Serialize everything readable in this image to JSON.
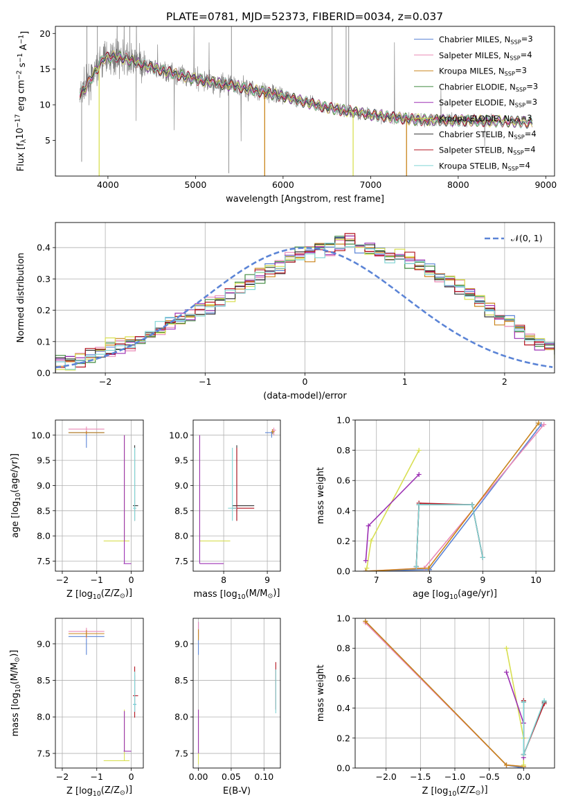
{
  "figure_title": "PLATE=0781, MJD=52373, FIBERID=0034, z=0.037",
  "colors": {
    "Chabrier MILES": "#5b84d6",
    "Salpeter MILES": "#e989b6",
    "Kroupa MILES": "#c9841a",
    "Chabrier ELODIE": "#3f8a3f",
    "Salpeter ELODIE": "#9b2fb3",
    "Kroupa ELODIE": "#d8df52",
    "Chabrier STELIB": "#333333",
    "Salpeter STELIB": "#b3121e",
    "Kroupa STELIB": "#7fd4d4",
    "data": "#777777",
    "normal": "#5b84d6"
  },
  "chart_data": [
    {
      "type": "line",
      "id": "spectrum",
      "title": "PLATE=0781, MJD=52373, FIBERID=0034, z=0.037",
      "xlabel": "wavelength [Angstrom, rest frame]",
      "ylabel_parts": [
        "Flux [f",
        "λ",
        "10",
        "−17",
        " erg cm",
        "−2",
        " s",
        "−1",
        " A",
        "−1",
        "]"
      ],
      "xlim": [
        3400,
        9100
      ],
      "ylim": [
        0,
        21
      ],
      "xticks": [
        4000,
        5000,
        6000,
        7000,
        8000,
        9000
      ],
      "yticks": [
        5,
        10,
        15,
        20
      ],
      "legend_position": "upper-right",
      "legend": [
        {
          "name": "Chabrier MILES",
          "pre": "Chabrier MILES, N",
          "sub": "SSP",
          "post": "=3"
        },
        {
          "name": "Salpeter MILES",
          "pre": "Salpeter MILES, N",
          "sub": "SSP",
          "post": "=4"
        },
        {
          "name": "Kroupa MILES",
          "pre": "Kroupa MILES, N",
          "sub": "SSP",
          "post": "=3"
        },
        {
          "name": "Chabrier ELODIE",
          "pre": "Chabrier ELODIE, N",
          "sub": "SSP",
          "post": "=3"
        },
        {
          "name": "Salpeter ELODIE",
          "pre": "Salpeter ELODIE, N",
          "sub": "SSP",
          "post": "=3"
        },
        {
          "name": "Kroupa ELODIE",
          "pre": "Kroupa ELODIE, N",
          "sub": "SSP",
          "post": "=3"
        },
        {
          "name": "Chabrier STELIB",
          "pre": "Chabrier STELIB, N",
          "sub": "SSP",
          "post": "=4"
        },
        {
          "name": "Salpeter STELIB",
          "pre": "Salpeter STELIB, N",
          "sub": "SSP",
          "post": "=4"
        },
        {
          "name": "Kroupa STELIB",
          "pre": "Kroupa STELIB, N",
          "sub": "SSP",
          "post": "=4"
        }
      ],
      "data_range": [
        3680,
        8850
      ],
      "continuum": [
        [
          3680,
          11.5
        ],
        [
          3750,
          12.5
        ],
        [
          3850,
          14.5
        ],
        [
          3950,
          16.5
        ],
        [
          4100,
          16.8
        ],
        [
          4300,
          16.0
        ],
        [
          4500,
          15.2
        ],
        [
          5000,
          13.6
        ],
        [
          5500,
          12.5
        ],
        [
          6000,
          11.2
        ],
        [
          6500,
          9.6
        ],
        [
          7000,
          8.6
        ],
        [
          7500,
          7.9
        ],
        [
          8000,
          7.8
        ],
        [
          8500,
          7.7
        ],
        [
          8850,
          7.5
        ]
      ],
      "drops": [
        {
          "series": "Kroupa MILES",
          "x": 5790,
          "to": 0
        },
        {
          "series": "Kroupa MILES",
          "x": 7410,
          "to": 0
        },
        {
          "series": "Kroupa ELODIE",
          "x": 3900,
          "to": 0
        },
        {
          "series": "Kroupa ELODIE",
          "x": 6800,
          "to": 0
        }
      ]
    },
    {
      "type": "step",
      "id": "residuals",
      "xlabel": "(data-model)/error",
      "ylabel": "Normed distribution",
      "xlim": [
        -2.5,
        2.5
      ],
      "ylim": [
        0,
        0.48
      ],
      "xticks": [
        -2,
        -1,
        0,
        1,
        2
      ],
      "yticks": [
        0.0,
        0.1,
        0.2,
        0.3,
        0.4
      ],
      "legend_position": "upper-right",
      "reference": {
        "name": "𝒩(0, 1)",
        "mean": 0,
        "sigma": 1
      },
      "bins": {
        "start": -2.5,
        "width": 0.1
      },
      "envelope": [
        0.035,
        0.04,
        0.045,
        0.06,
        0.07,
        0.075,
        0.085,
        0.095,
        0.105,
        0.12,
        0.135,
        0.155,
        0.17,
        0.185,
        0.2,
        0.215,
        0.235,
        0.25,
        0.27,
        0.29,
        0.31,
        0.325,
        0.345,
        0.36,
        0.375,
        0.39,
        0.395,
        0.41,
        0.415,
        0.42,
        0.405,
        0.395,
        0.385,
        0.375,
        0.37,
        0.36,
        0.345,
        0.33,
        0.315,
        0.295,
        0.275,
        0.25,
        0.23,
        0.205,
        0.185,
        0.16,
        0.14,
        0.12,
        0.1,
        0.085,
        0.07,
        0.055,
        0.045,
        0.04,
        0.035
      ]
    },
    {
      "type": "errorbar",
      "id": "age-vs-Z",
      "xlabel_parts": [
        "Z [log",
        "10",
        "(Z/Z",
        "⊙",
        ")]"
      ],
      "ylabel_parts": [
        "age  [log",
        "10",
        "(age/yr)]"
      ],
      "xlim": [
        -2.2,
        0.35
      ],
      "ylim": [
        7.3,
        10.3
      ],
      "xticks": [
        -2,
        -1,
        0
      ],
      "yticks": [
        7.5,
        8.0,
        8.5,
        9.0,
        9.5,
        10.0
      ],
      "points": [
        {
          "series": "Chabrier MILES",
          "x": -1.3,
          "y": 10.05,
          "xerr": [
            0.52,
            0.52
          ],
          "yerr": [
            0.3,
            0.03
          ]
        },
        {
          "series": "Salpeter MILES",
          "x": -1.3,
          "y": 10.12,
          "xerr": [
            0.52,
            0.52
          ],
          "yerr": [
            0.1,
            0.05
          ]
        },
        {
          "series": "Kroupa MILES",
          "x": -1.3,
          "y": 10.05,
          "xerr": [
            0.52,
            0.52
          ],
          "yerr": [
            0.03,
            0.03
          ]
        },
        {
          "series": "Kroupa ELODIE",
          "x": -0.2,
          "y": 7.9,
          "xerr": [
            0.6,
            0.15
          ],
          "yerr": [
            0.0,
            2.1
          ]
        },
        {
          "series": "Salpeter ELODIE",
          "x": -0.2,
          "y": 7.45,
          "xerr": [
            0.02,
            0.2
          ],
          "yerr": [
            0.0,
            2.55
          ]
        },
        {
          "series": "Chabrier STELIB",
          "x": 0.1,
          "y": 8.6,
          "xerr": [
            0.05,
            0.1
          ],
          "yerr": [
            0.3,
            1.2
          ]
        },
        {
          "series": "Kroupa STELIB",
          "x": 0.1,
          "y": 8.55,
          "xerr": [
            0.05,
            0.05
          ],
          "yerr": [
            0.25,
            1.2
          ]
        }
      ]
    },
    {
      "type": "errorbar",
      "id": "age-vs-mass",
      "xlabel_parts": [
        "mass [log",
        "10",
        "(M/M",
        "⊙",
        ")]"
      ],
      "ylabel": "",
      "xlim": [
        7.3,
        9.3
      ],
      "ylim": [
        7.3,
        10.3
      ],
      "xticks": [
        8,
        9
      ],
      "yticks": [
        7.5,
        8.0,
        8.5,
        9.0,
        9.5,
        10.0
      ],
      "points": [
        {
          "series": "Chabrier MILES",
          "x": 9.1,
          "y": 10.05,
          "xerr": [
            0.15,
            0.05
          ],
          "yerr": [
            0.1,
            0.03
          ]
        },
        {
          "series": "Salpeter MILES",
          "x": 9.15,
          "y": 10.1,
          "xerr": [
            0.05,
            0.05
          ],
          "yerr": [
            0.1,
            0.05
          ]
        },
        {
          "series": "Kroupa MILES",
          "x": 9.12,
          "y": 10.07,
          "xerr": [
            0.03,
            0.05
          ],
          "yerr": [
            0.05,
            0.05
          ]
        },
        {
          "series": "Kroupa ELODIE",
          "x": 7.45,
          "y": 7.9,
          "xerr": [
            0.0,
            0.7
          ],
          "yerr": [
            0.0,
            2.1
          ]
        },
        {
          "series": "Salpeter ELODIE",
          "x": 7.45,
          "y": 7.45,
          "xerr": [
            0.0,
            0.55
          ],
          "yerr": [
            0.0,
            2.55
          ]
        },
        {
          "series": "Chabrier STELIB",
          "x": 8.3,
          "y": 8.6,
          "xerr": [
            0.1,
            0.4
          ],
          "yerr": [
            0.3,
            1.2
          ]
        },
        {
          "series": "Salpeter STELIB",
          "x": 8.3,
          "y": 8.55,
          "xerr": [
            0.1,
            0.4
          ],
          "yerr": [
            0.25,
            1.2
          ]
        },
        {
          "series": "Kroupa STELIB",
          "x": 8.2,
          "y": 8.55,
          "xerr": [
            0.1,
            0.1
          ],
          "yerr": [
            0.25,
            1.2
          ]
        }
      ]
    },
    {
      "type": "line",
      "id": "weight-vs-age",
      "xlabel_parts": [
        "age  [log",
        "10",
        "(age/yr)]"
      ],
      "ylabel": "mass weight",
      "xlim": [
        6.6,
        10.35
      ],
      "ylim": [
        0,
        1.0
      ],
      "xticks": [
        7,
        8,
        9,
        10
      ],
      "yticks": [
        0.0,
        0.2,
        0.4,
        0.6,
        0.8,
        1.0
      ],
      "series": [
        {
          "name": "Chabrier MILES",
          "x": [
            6.8,
            8.0,
            10.1
          ],
          "y": [
            0.0,
            0.01,
            0.97
          ]
        },
        {
          "name": "Salpeter MILES",
          "x": [
            6.8,
            7.9,
            10.15
          ],
          "y": [
            0.0,
            0.02,
            0.97
          ]
        },
        {
          "name": "Kroupa MILES",
          "x": [
            6.8,
            7.98,
            10.05
          ],
          "y": [
            0.0,
            0.02,
            0.98
          ]
        },
        {
          "name": "Kroupa ELODIE",
          "x": [
            6.82,
            6.9,
            7.8
          ],
          "y": [
            0.02,
            0.2,
            0.8
          ]
        },
        {
          "name": "Salpeter ELODIE",
          "x": [
            6.8,
            6.85,
            7.8
          ],
          "y": [
            0.07,
            0.3,
            0.64
          ]
        },
        {
          "name": "Chabrier STELIB",
          "x": [
            7.75,
            7.8,
            8.8,
            9.0
          ],
          "y": [
            0.03,
            0.44,
            0.44,
            0.09
          ]
        },
        {
          "name": "Salpeter STELIB",
          "x": [
            7.75,
            7.8,
            8.8,
            9.0
          ],
          "y": [
            0.03,
            0.45,
            0.44,
            0.09
          ]
        },
        {
          "name": "Kroupa STELIB",
          "x": [
            7.75,
            7.8,
            8.8,
            9.0
          ],
          "y": [
            0.03,
            0.44,
            0.44,
            0.09
          ]
        }
      ]
    },
    {
      "type": "errorbar",
      "id": "mass-vs-Z",
      "xlabel_parts": [
        "Z [log",
        "10",
        "(Z/Z",
        "⊙",
        ")]"
      ],
      "ylabel_parts": [
        "mass [log",
        "10",
        "(M/M",
        "⊙",
        ")]"
      ],
      "xlim": [
        -2.2,
        0.35
      ],
      "ylim": [
        7.3,
        9.35
      ],
      "xticks": [
        -2,
        -1,
        0
      ],
      "yticks": [
        7.5,
        8.0,
        8.5,
        9.0
      ],
      "points": [
        {
          "series": "Chabrier MILES",
          "x": -1.3,
          "y": 9.1,
          "xerr": [
            0.52,
            0.52
          ],
          "yerr": [
            0.25,
            0.05
          ]
        },
        {
          "series": "Salpeter MILES",
          "x": -1.3,
          "y": 9.17,
          "xerr": [
            0.52,
            0.52
          ],
          "yerr": [
            0.1,
            0.05
          ]
        },
        {
          "series": "Kroupa MILES",
          "x": -1.3,
          "y": 9.14,
          "xerr": [
            0.52,
            0.52
          ],
          "yerr": [
            0.05,
            0.05
          ]
        },
        {
          "series": "Kroupa ELODIE",
          "x": -0.2,
          "y": 7.4,
          "xerr": [
            0.6,
            0.15
          ],
          "yerr": [
            0.0,
            0.7
          ]
        },
        {
          "series": "Salpeter ELODIE",
          "x": -0.2,
          "y": 7.53,
          "xerr": [
            0.02,
            0.2
          ],
          "yerr": [
            0.0,
            0.55
          ]
        },
        {
          "series": "Salpeter STELIB",
          "x": 0.1,
          "y": 8.29,
          "xerr": [
            0.05,
            0.1
          ],
          "yerr": [
            0.3,
            0.4
          ]
        },
        {
          "series": "Chabrier MILES",
          "x": 0.1,
          "y": 8.17,
          "xerr": [
            0.05,
            0.05
          ],
          "yerr": [
            0.1,
            0.4
          ]
        },
        {
          "series": "Kroupa STELIB",
          "x": 0.1,
          "y": 8.17,
          "xerr": [
            0.05,
            0.05
          ],
          "yerr": [
            0.1,
            0.45
          ]
        }
      ]
    },
    {
      "type": "errorbar",
      "id": "mass-vs-ebv",
      "xlabel": "E(B-V)",
      "ylabel": "",
      "xlim": [
        -0.008,
        0.125
      ],
      "ylim": [
        7.3,
        9.35
      ],
      "xticks": [
        0.0,
        0.05,
        0.1
      ],
      "yticks": [
        7.5,
        8.0,
        8.5,
        9.0
      ],
      "points": [
        {
          "series": "Chabrier MILES",
          "x": 0.0,
          "y": 9.0,
          "xerr": [
            0,
            0
          ],
          "yerr": [
            0.15,
            0.3
          ]
        },
        {
          "series": "Salpeter MILES",
          "x": 0.0,
          "y": 9.2,
          "xerr": [
            0,
            0
          ],
          "yerr": [
            0.1,
            0.1
          ]
        },
        {
          "series": "Kroupa MILES",
          "x": 0.0,
          "y": 9.1,
          "xerr": [
            0,
            0
          ],
          "yerr": [
            0.05,
            0.1
          ]
        },
        {
          "series": "Kroupa ELODIE",
          "x": 0.0,
          "y": 7.8,
          "xerr": [
            0,
            0
          ],
          "yerr": [
            0.45,
            0.3
          ]
        },
        {
          "series": "Salpeter ELODIE",
          "x": 0.0,
          "y": 7.8,
          "xerr": [
            0,
            0
          ],
          "yerr": [
            0.3,
            0.3
          ]
        },
        {
          "series": "Salpeter STELIB",
          "x": 0.118,
          "y": 8.4,
          "xerr": [
            0,
            0
          ],
          "yerr": [
            0.3,
            0.35
          ]
        },
        {
          "series": "Kroupa STELIB",
          "x": 0.118,
          "y": 8.35,
          "xerr": [
            0,
            0
          ],
          "yerr": [
            0.3,
            0.3
          ]
        }
      ]
    },
    {
      "type": "line",
      "id": "weight-vs-Z",
      "xlabel_parts": [
        "Z [log",
        "10",
        "(Z/Z",
        "⊙",
        ")]"
      ],
      "ylabel": "mass weight",
      "xlim": [
        -2.45,
        0.45
      ],
      "ylim": [
        0,
        1.0
      ],
      "xticks": [
        -2.0,
        -1.5,
        -1.0,
        -0.5,
        0.0
      ],
      "yticks": [
        0.0,
        0.2,
        0.4,
        0.6,
        0.8,
        1.0
      ],
      "series": [
        {
          "name": "Chabrier MILES",
          "x": [
            -2.3,
            -0.25,
            0.0
          ],
          "y": [
            0.98,
            0.02,
            0.0
          ]
        },
        {
          "name": "Salpeter MILES",
          "x": [
            -2.3,
            -0.25,
            0.0
          ],
          "y": [
            0.97,
            0.02,
            0.01
          ]
        },
        {
          "name": "Kroupa MILES",
          "x": [
            -2.3,
            -0.25,
            0.0
          ],
          "y": [
            0.98,
            0.02,
            0.01
          ]
        },
        {
          "name": "Kroupa ELODIE",
          "x": [
            -0.25,
            0.0,
            0.0
          ],
          "y": [
            0.8,
            0.2,
            0.02
          ]
        },
        {
          "name": "Salpeter ELODIE",
          "x": [
            -0.25,
            0.0,
            0.0
          ],
          "y": [
            0.64,
            0.3,
            0.07
          ]
        },
        {
          "name": "Chabrier STELIB",
          "x": [
            0.0,
            0.0,
            0.3
          ],
          "y": [
            0.44,
            0.09,
            0.44
          ]
        },
        {
          "name": "Salpeter STELIB",
          "x": [
            0.0,
            0.0,
            0.3
          ],
          "y": [
            0.45,
            0.09,
            0.43
          ]
        },
        {
          "name": "Kroupa STELIB",
          "x": [
            0.0,
            0.0,
            0.3
          ],
          "y": [
            0.44,
            0.09,
            0.45
          ]
        }
      ]
    }
  ]
}
